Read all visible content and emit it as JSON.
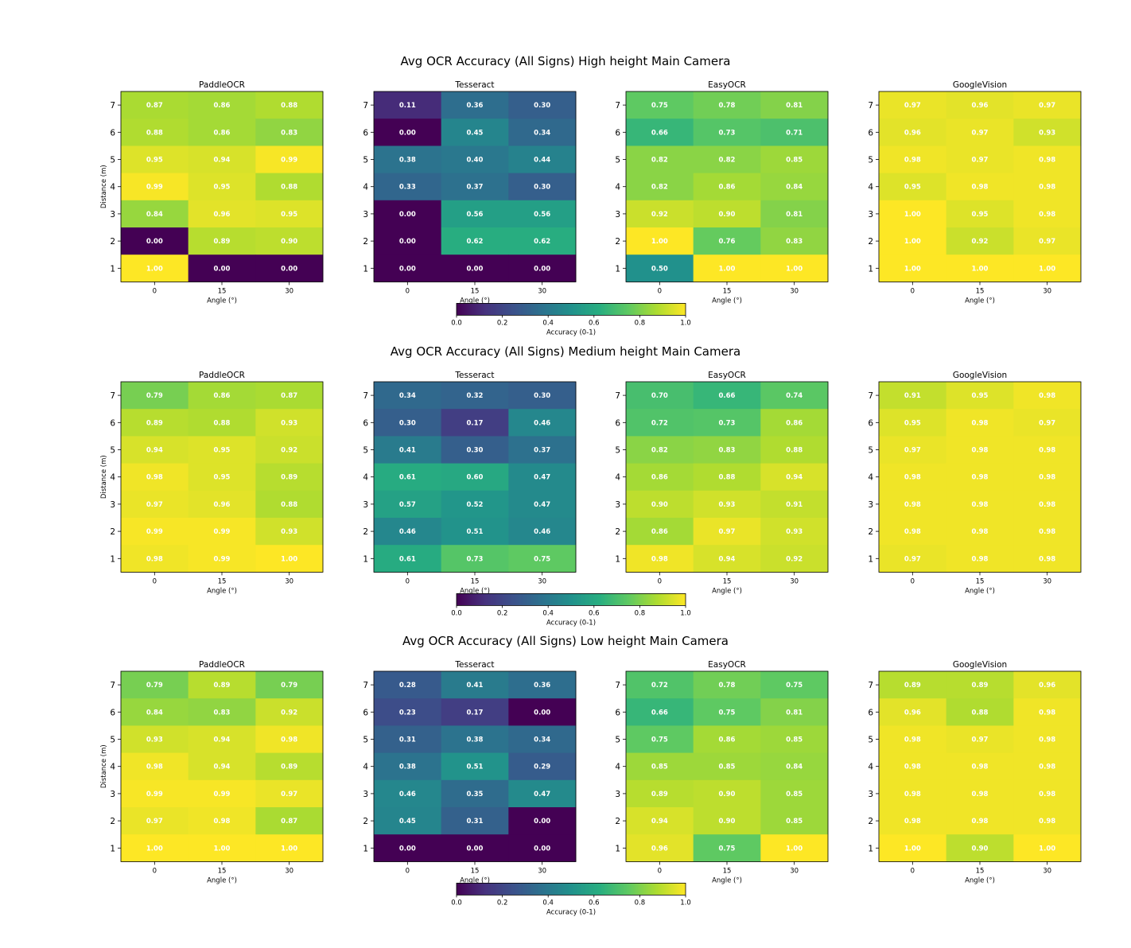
{
  "figure": {
    "colormap": "viridis",
    "cell_label_color": "#ffffff",
    "colorbar_label": "Accuracy (0-1)",
    "colorbar_ticks": [
      "0.0",
      "0.2",
      "0.4",
      "0.6",
      "0.8",
      "1.0"
    ]
  },
  "chart_data": [
    {
      "type": "heatmap",
      "title": "Avg OCR Accuracy (All Signs)  High height  Main Camera",
      "xlabel": "Angle (°)",
      "ylabel": "Distance (m)",
      "x_ticks": [
        "0",
        "15",
        "30"
      ],
      "y_ticks": [
        "7",
        "6",
        "5",
        "4",
        "3",
        "2",
        "1"
      ],
      "vmin": 0,
      "vmax": 1,
      "panels": [
        {
          "name": "PaddleOCR",
          "values": [
            [
              0.87,
              0.86,
              0.88
            ],
            [
              0.88,
              0.86,
              0.83
            ],
            [
              0.95,
              0.94,
              0.99
            ],
            [
              0.99,
              0.95,
              0.88
            ],
            [
              0.84,
              0.96,
              0.95
            ],
            [
              0.0,
              0.89,
              0.9
            ],
            [
              1.0,
              0.0,
              0.0
            ]
          ]
        },
        {
          "name": "Tesseract",
          "values": [
            [
              0.11,
              0.36,
              0.3
            ],
            [
              0.0,
              0.45,
              0.34
            ],
            [
              0.38,
              0.4,
              0.44
            ],
            [
              0.33,
              0.37,
              0.3
            ],
            [
              0.0,
              0.56,
              0.56
            ],
            [
              0.0,
              0.62,
              0.62
            ],
            [
              0.0,
              0.0,
              0.0
            ]
          ]
        },
        {
          "name": "EasyOCR",
          "values": [
            [
              0.75,
              0.78,
              0.81
            ],
            [
              0.66,
              0.73,
              0.71
            ],
            [
              0.82,
              0.82,
              0.85
            ],
            [
              0.82,
              0.86,
              0.84
            ],
            [
              0.92,
              0.9,
              0.81
            ],
            [
              1.0,
              0.76,
              0.83
            ],
            [
              0.5,
              1.0,
              1.0
            ]
          ]
        },
        {
          "name": "GoogleVision",
          "values": [
            [
              0.97,
              0.96,
              0.97
            ],
            [
              0.96,
              0.97,
              0.93
            ],
            [
              0.98,
              0.97,
              0.98
            ],
            [
              0.95,
              0.98,
              0.98
            ],
            [
              1.0,
              0.95,
              0.98
            ],
            [
              1.0,
              0.92,
              0.97
            ],
            [
              1.0,
              1.0,
              1.0
            ]
          ]
        }
      ]
    },
    {
      "type": "heatmap",
      "title": "Avg OCR Accuracy (All Signs)  Medium height  Main Camera",
      "xlabel": "Angle (°)",
      "ylabel": "Distance (m)",
      "x_ticks": [
        "0",
        "15",
        "30"
      ],
      "y_ticks": [
        "7",
        "6",
        "5",
        "4",
        "3",
        "2",
        "1"
      ],
      "vmin": 0,
      "vmax": 1,
      "panels": [
        {
          "name": "PaddleOCR",
          "values": [
            [
              0.79,
              0.86,
              0.87
            ],
            [
              0.89,
              0.88,
              0.93
            ],
            [
              0.94,
              0.95,
              0.92
            ],
            [
              0.98,
              0.95,
              0.89
            ],
            [
              0.97,
              0.96,
              0.88
            ],
            [
              0.99,
              0.99,
              0.93
            ],
            [
              0.98,
              0.99,
              1.0
            ]
          ]
        },
        {
          "name": "Tesseract",
          "values": [
            [
              0.34,
              0.32,
              0.3
            ],
            [
              0.3,
              0.17,
              0.46
            ],
            [
              0.41,
              0.3,
              0.37
            ],
            [
              0.61,
              0.6,
              0.47
            ],
            [
              0.57,
              0.52,
              0.47
            ],
            [
              0.46,
              0.51,
              0.46
            ],
            [
              0.61,
              0.73,
              0.75
            ]
          ]
        },
        {
          "name": "EasyOCR",
          "values": [
            [
              0.7,
              0.66,
              0.74
            ],
            [
              0.72,
              0.73,
              0.86
            ],
            [
              0.82,
              0.83,
              0.88
            ],
            [
              0.86,
              0.88,
              0.94
            ],
            [
              0.9,
              0.93,
              0.91
            ],
            [
              0.86,
              0.97,
              0.93
            ],
            [
              0.98,
              0.94,
              0.92
            ]
          ]
        },
        {
          "name": "GoogleVision",
          "values": [
            [
              0.91,
              0.95,
              0.98
            ],
            [
              0.95,
              0.98,
              0.97
            ],
            [
              0.97,
              0.98,
              0.98
            ],
            [
              0.98,
              0.98,
              0.98
            ],
            [
              0.98,
              0.98,
              0.98
            ],
            [
              0.98,
              0.98,
              0.98
            ],
            [
              0.97,
              0.98,
              0.98
            ]
          ]
        }
      ]
    },
    {
      "type": "heatmap",
      "title": "Avg OCR Accuracy (All Signs)  Low height  Main Camera",
      "xlabel": "Angle (°)",
      "ylabel": "Distance (m)",
      "x_ticks": [
        "0",
        "15",
        "30"
      ],
      "y_ticks": [
        "7",
        "6",
        "5",
        "4",
        "3",
        "2",
        "1"
      ],
      "vmin": 0,
      "vmax": 1,
      "panels": [
        {
          "name": "PaddleOCR",
          "values": [
            [
              0.79,
              0.89,
              0.79
            ],
            [
              0.84,
              0.83,
              0.92
            ],
            [
              0.93,
              0.94,
              0.98
            ],
            [
              0.98,
              0.94,
              0.89
            ],
            [
              0.99,
              0.99,
              0.97
            ],
            [
              0.97,
              0.98,
              0.87
            ],
            [
              1.0,
              1.0,
              1.0
            ]
          ]
        },
        {
          "name": "Tesseract",
          "values": [
            [
              0.28,
              0.41,
              0.36
            ],
            [
              0.23,
              0.17,
              0.0
            ],
            [
              0.31,
              0.38,
              0.34
            ],
            [
              0.38,
              0.51,
              0.29
            ],
            [
              0.46,
              0.35,
              0.47
            ],
            [
              0.45,
              0.31,
              0.0
            ],
            [
              0.0,
              0.0,
              0.0
            ]
          ]
        },
        {
          "name": "EasyOCR",
          "values": [
            [
              0.72,
              0.78,
              0.75
            ],
            [
              0.66,
              0.75,
              0.81
            ],
            [
              0.75,
              0.86,
              0.85
            ],
            [
              0.85,
              0.85,
              0.84
            ],
            [
              0.89,
              0.9,
              0.85
            ],
            [
              0.94,
              0.9,
              0.85
            ],
            [
              0.96,
              0.75,
              1.0
            ]
          ]
        },
        {
          "name": "GoogleVision",
          "values": [
            [
              0.89,
              0.89,
              0.96
            ],
            [
              0.96,
              0.88,
              0.98
            ],
            [
              0.98,
              0.97,
              0.98
            ],
            [
              0.98,
              0.98,
              0.98
            ],
            [
              0.98,
              0.98,
              0.98
            ],
            [
              0.98,
              0.98,
              0.98
            ],
            [
              1.0,
              0.9,
              1.0
            ]
          ]
        }
      ]
    }
  ]
}
